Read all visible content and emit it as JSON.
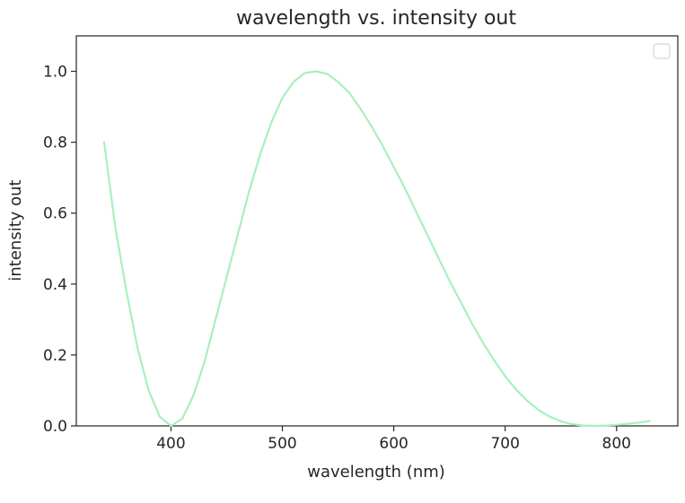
{
  "chart_data": {
    "type": "line",
    "title": "wavelength vs. intensity out",
    "xlabel": "wavelength (nm)",
    "ylabel": "intensity out",
    "xlim": [
      315,
      855
    ],
    "ylim": [
      0,
      1.1
    ],
    "xticks": [
      400,
      500,
      600,
      700,
      800
    ],
    "yticks": [
      0.0,
      0.2,
      0.4,
      0.6,
      0.8,
      1.0
    ],
    "xtick_labels": [
      "400",
      "500",
      "600",
      "700",
      "800"
    ],
    "ytick_labels": [
      "0.0",
      "0.2",
      "0.4",
      "0.6",
      "0.8",
      "1.0"
    ],
    "grid": false,
    "legend": {
      "placement": "top-right",
      "entries": []
    },
    "series": [
      {
        "color": "#a8f0bd",
        "x": [
          340,
          350,
          360,
          370,
          380,
          390,
          400,
          410,
          420,
          430,
          440,
          450,
          460,
          470,
          480,
          490,
          500,
          510,
          520,
          530,
          540,
          550,
          560,
          570,
          580,
          590,
          600,
          610,
          620,
          630,
          640,
          650,
          660,
          670,
          680,
          690,
          700,
          710,
          720,
          730,
          740,
          750,
          760,
          770,
          780,
          790,
          800,
          810,
          820,
          830
        ],
        "y": [
          0.8,
          0.56,
          0.38,
          0.22,
          0.1,
          0.025,
          0.0,
          0.02,
          0.085,
          0.18,
          0.3,
          0.42,
          0.54,
          0.66,
          0.765,
          0.855,
          0.925,
          0.97,
          0.995,
          1.0,
          0.993,
          0.97,
          0.94,
          0.895,
          0.845,
          0.79,
          0.73,
          0.67,
          0.605,
          0.54,
          0.475,
          0.41,
          0.35,
          0.29,
          0.235,
          0.185,
          0.14,
          0.102,
          0.07,
          0.045,
          0.026,
          0.013,
          0.005,
          0.001,
          0.0,
          0.001,
          0.003,
          0.006,
          0.009,
          0.014
        ]
      }
    ]
  }
}
